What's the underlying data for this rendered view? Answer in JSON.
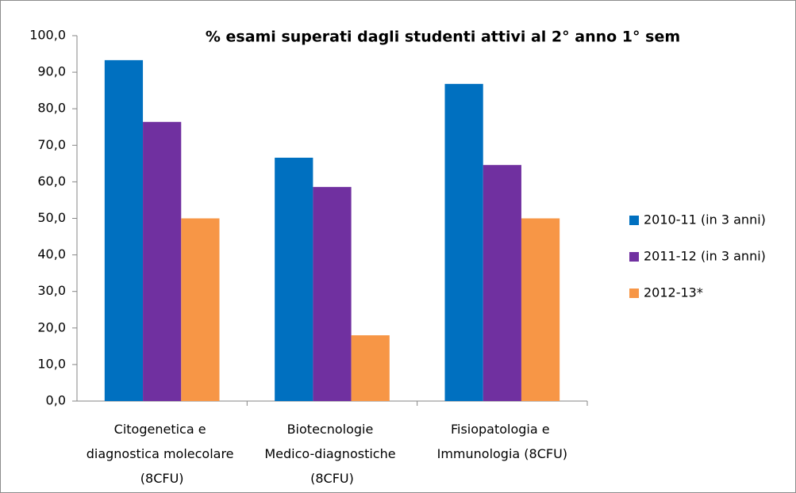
{
  "chart_data": {
    "type": "bar",
    "title": "% esami superati  dagli studenti attivi al 2° anno 1° sem",
    "categories": [
      "Citogenetica e diagnostica molecolare (8CFU)",
      "Biotecnologie Medico-diagnostiche (8CFU)",
      "Fisiopatologia e Immunologia (8CFU)"
    ],
    "series": [
      {
        "name": "2010-11 (in 3 anni)",
        "color": "#0070c0",
        "values": [
          93.3,
          66.6,
          86.8
        ]
      },
      {
        "name": "2011-12 (in 3 anni)",
        "color": "#7030a0",
        "values": [
          76.4,
          58.6,
          64.6
        ]
      },
      {
        "name": "2012-13*",
        "color": "#f79646",
        "values": [
          50.0,
          18.0,
          50.0
        ]
      }
    ],
    "ylim": [
      0,
      100
    ],
    "yticks": [
      {
        "value": 0,
        "label": "0,0"
      },
      {
        "value": 10,
        "label": "10,0"
      },
      {
        "value": 20,
        "label": "20,0"
      },
      {
        "value": 30,
        "label": "30,0"
      },
      {
        "value": 40,
        "label": "40,0"
      },
      {
        "value": 50,
        "label": "50,0"
      },
      {
        "value": 60,
        "label": "60,0"
      },
      {
        "value": 70,
        "label": "70,0"
      },
      {
        "value": 80,
        "label": "80,0"
      },
      {
        "value": 90,
        "label": "90,0"
      },
      {
        "value": 100,
        "label": "100,0"
      }
    ],
    "legend": "right"
  }
}
